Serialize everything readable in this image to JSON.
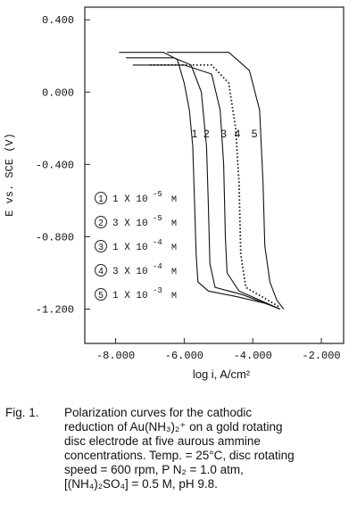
{
  "chart_data": {
    "type": "line",
    "y_label": "E vs. SCE (V)",
    "x_label": "log i, A/cm²",
    "xlim": [
      -8.9,
      -1.35
    ],
    "ylim": [
      -1.39,
      0.47
    ],
    "xticks": [
      {
        "value": -8,
        "label": "-8.000"
      },
      {
        "value": -6,
        "label": "-6.000"
      },
      {
        "value": -4,
        "label": "-4.000"
      },
      {
        "value": -2,
        "label": "-2.000"
      }
    ],
    "yticks": [
      {
        "value": 0.4,
        "label": "0.400"
      },
      {
        "value": 0,
        "label": "0.000"
      },
      {
        "value": -0.4,
        "label": "-0.400"
      },
      {
        "value": -0.8,
        "label": "-0.800"
      },
      {
        "value": -1.2,
        "label": "-1.200"
      }
    ],
    "series": [
      {
        "name": "1",
        "color": "#111111",
        "x": [
          -7.9,
          -6.6,
          -6.2,
          -6.0,
          -5.85,
          -5.75,
          -5.7,
          -5.65,
          -5.6,
          -5.3,
          -4.5,
          -3.6,
          -3.2
        ],
        "values": [
          0.22,
          0.22,
          0.18,
          0.05,
          -0.1,
          -0.3,
          -0.6,
          -0.9,
          -1.05,
          -1.1,
          -1.13,
          -1.17,
          -1.2
        ]
      },
      {
        "name": "2",
        "color": "#111111",
        "x": [
          -7.7,
          -6.3,
          -5.8,
          -5.5,
          -5.35,
          -5.3,
          -5.25,
          -5.1,
          -4.3,
          -3.2
        ],
        "values": [
          0.19,
          0.19,
          0.15,
          0.0,
          -0.3,
          -0.6,
          -0.95,
          -1.08,
          -1.12,
          -1.2
        ]
      },
      {
        "name": "3",
        "color": "#111111",
        "x": [
          -7.5,
          -6.0,
          -5.2,
          -4.95,
          -4.85,
          -4.8,
          -4.75,
          -4.4,
          -3.2
        ],
        "values": [
          0.15,
          0.15,
          0.1,
          -0.1,
          -0.4,
          -0.8,
          -1.0,
          -1.1,
          -1.2
        ]
      },
      {
        "name": "4",
        "color": "#111111",
        "dotted": true,
        "x": [
          -7.0,
          -5.2,
          -4.7,
          -4.5,
          -4.4,
          -4.35,
          -4.2,
          -3.2
        ],
        "values": [
          0.15,
          0.15,
          0.05,
          -0.2,
          -0.5,
          -0.9,
          -1.08,
          -1.19
        ]
      },
      {
        "name": "5",
        "color": "#111111",
        "x": [
          -6.5,
          -4.7,
          -4.1,
          -3.8,
          -3.7,
          -3.65,
          -3.5,
          -3.3,
          -3.1
        ],
        "values": [
          0.22,
          0.22,
          0.12,
          -0.1,
          -0.5,
          -0.85,
          -1.05,
          -1.15,
          -1.2
        ]
      }
    ],
    "curve_label_x": [
      -5.7,
      -5.35,
      -4.85,
      -4.45,
      -3.95
    ],
    "curve_label_y": -0.25,
    "legend": [
      {
        "mark": "1",
        "text": "1 X 10",
        "exp": "-5",
        "unit": "M"
      },
      {
        "mark": "2",
        "text": "3 X 10",
        "exp": "-5",
        "unit": "M"
      },
      {
        "mark": "3",
        "text": "1 X 10",
        "exp": "-4",
        "unit": "M"
      },
      {
        "mark": "4",
        "text": "3 X 10",
        "exp": "-4",
        "unit": "M"
      },
      {
        "mark": "5",
        "text": "1 X 10",
        "exp": "-3",
        "unit": "M"
      }
    ]
  },
  "caption": {
    "label": "Fig. 1.",
    "lines": [
      "Polarization curves for the cathodic",
      "reduction of Au(NH₃)₂⁺ on a gold rotating",
      "disc electrode at five aurous ammine",
      "concentrations. Temp. = 25°C, disc rotating",
      "speed = 600 rpm, P N₂ = 1.0 atm,",
      "[(NH₄)₂SO₄] = 0.5 M, pH 9.8."
    ]
  }
}
